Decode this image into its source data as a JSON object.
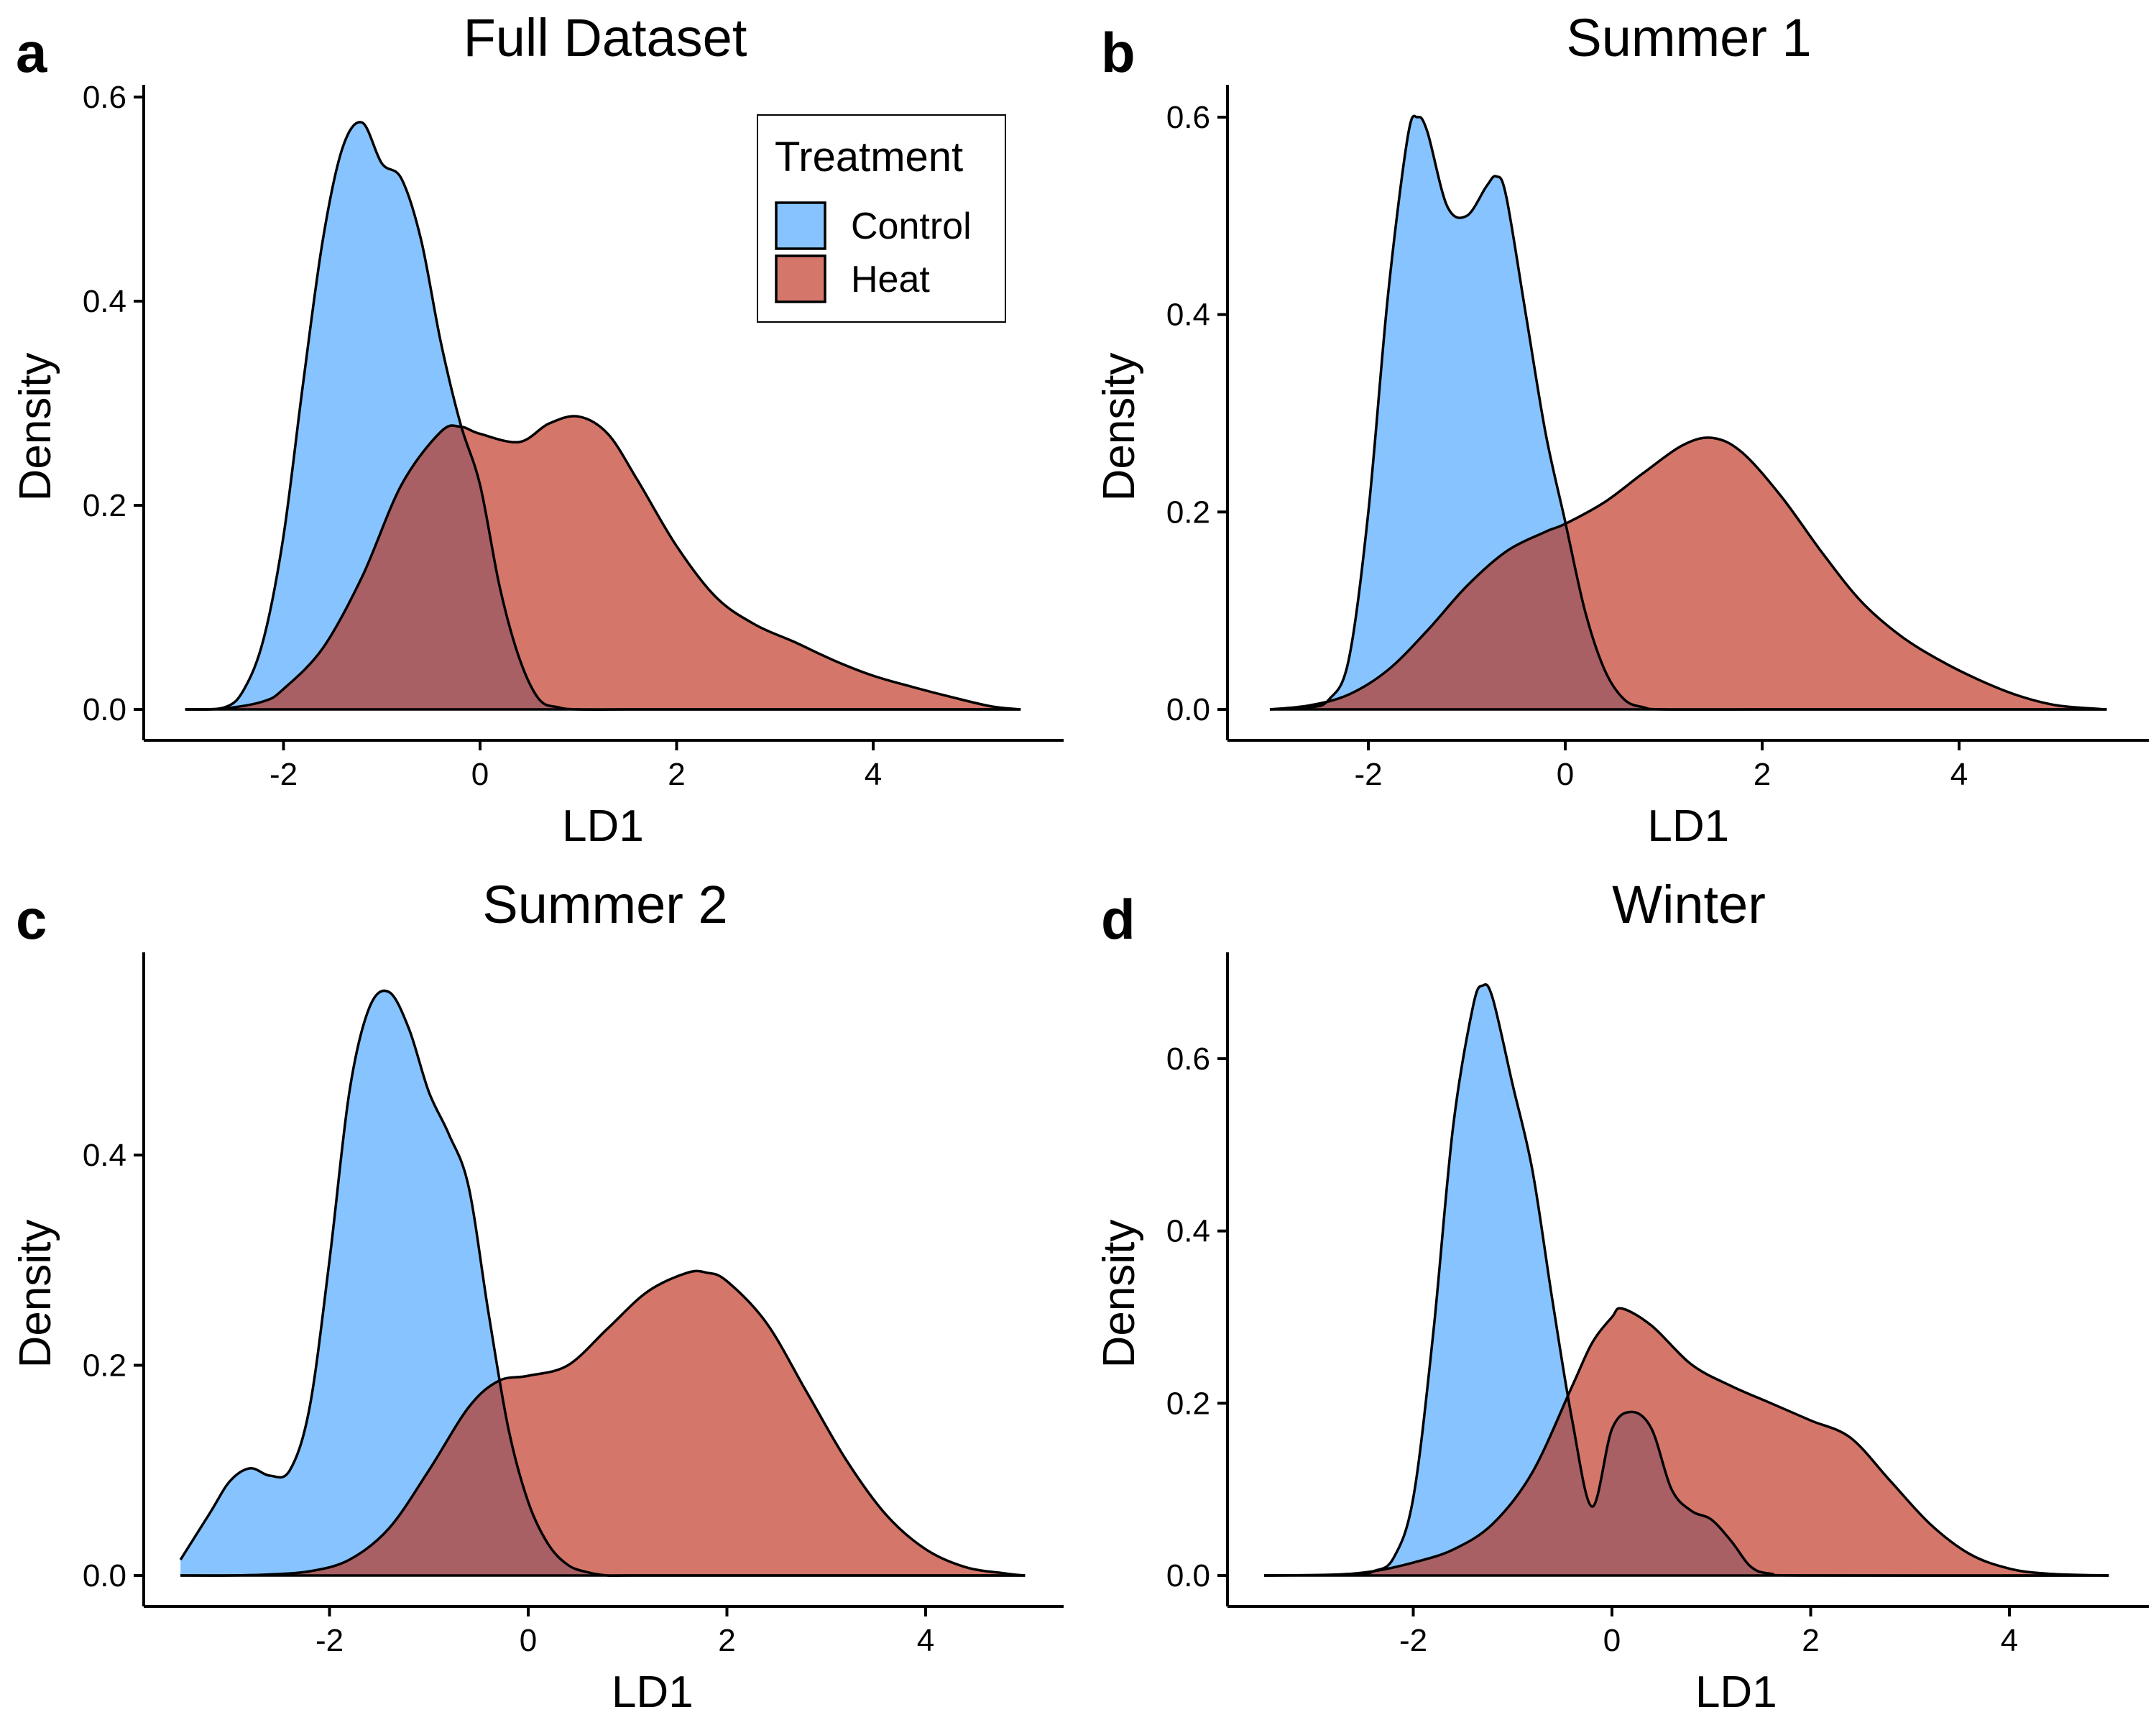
{
  "colors": {
    "control": "#87C4FF",
    "heat": "#D4776A",
    "overlap": "#A86064",
    "axis": "#000000"
  },
  "legend": {
    "title": "Treatment",
    "items": [
      {
        "label": "Control",
        "color": "#87C4FF"
      },
      {
        "label": "Heat",
        "color": "#D4776A"
      }
    ]
  },
  "chart_data": [
    {
      "type": "area",
      "panel": "a",
      "title": "Full Dataset",
      "xlabel": "LD1",
      "ylabel": "Density",
      "xlim": [
        -3.0,
        5.5
      ],
      "ylim": [
        0,
        0.6
      ],
      "xticks": [
        -2,
        0,
        2,
        4
      ],
      "yticks": [
        0.0,
        0.2,
        0.4,
        0.6
      ],
      "ytick_labels": [
        "0.0",
        "0.2",
        "0.4",
        "0.6"
      ],
      "legend": "top-right",
      "series": [
        {
          "name": "Control",
          "x": [
            -3.0,
            -2.6,
            -2.4,
            -2.2,
            -2.0,
            -1.8,
            -1.6,
            -1.4,
            -1.2,
            -1.0,
            -0.8,
            -0.6,
            -0.4,
            -0.2,
            0.0,
            0.2,
            0.4,
            0.6,
            0.8,
            1.0,
            1.5,
            2.0,
            3.0,
            4.0,
            5.0,
            5.5
          ],
          "y": [
            0.0,
            0.002,
            0.02,
            0.07,
            0.17,
            0.32,
            0.46,
            0.55,
            0.575,
            0.535,
            0.52,
            0.46,
            0.36,
            0.28,
            0.22,
            0.12,
            0.05,
            0.01,
            0.002,
            0.0,
            0.0,
            0.0,
            0.0,
            0.0,
            0.0,
            0.0
          ]
        },
        {
          "name": "Heat",
          "x": [
            -3.0,
            -2.6,
            -2.2,
            -2.0,
            -1.6,
            -1.2,
            -0.8,
            -0.4,
            -0.2,
            0.0,
            0.4,
            0.7,
            1.0,
            1.3,
            1.6,
            2.0,
            2.4,
            2.8,
            3.2,
            3.6,
            4.0,
            4.4,
            4.8,
            5.2,
            5.5
          ],
          "y": [
            0.0,
            0.001,
            0.008,
            0.02,
            0.06,
            0.13,
            0.22,
            0.272,
            0.277,
            0.27,
            0.262,
            0.28,
            0.287,
            0.27,
            0.225,
            0.16,
            0.11,
            0.083,
            0.066,
            0.048,
            0.033,
            0.022,
            0.012,
            0.003,
            0.0
          ]
        }
      ]
    },
    {
      "type": "area",
      "panel": "b",
      "title": "Summer 1",
      "xlabel": "LD1",
      "ylabel": "Density",
      "xlim": [
        -3.0,
        5.5
      ],
      "ylim": [
        0,
        0.6
      ],
      "xticks": [
        -2,
        0,
        2,
        4
      ],
      "yticks": [
        0.0,
        0.2,
        0.4,
        0.6
      ],
      "ytick_labels": [
        "0.0",
        "0.2",
        "0.4",
        "0.6"
      ],
      "series": [
        {
          "name": "Control",
          "x": [
            -3.0,
            -2.6,
            -2.4,
            -2.2,
            -2.0,
            -1.8,
            -1.6,
            -1.5,
            -1.4,
            -1.2,
            -1.0,
            -0.8,
            -0.7,
            -0.6,
            -0.4,
            -0.2,
            0.0,
            0.2,
            0.4,
            0.6,
            0.8,
            1.0,
            2.0,
            3.0,
            4.0,
            5.5
          ],
          "y": [
            0.0,
            0.002,
            0.01,
            0.05,
            0.2,
            0.42,
            0.58,
            0.6,
            0.585,
            0.51,
            0.5,
            0.53,
            0.54,
            0.52,
            0.4,
            0.28,
            0.19,
            0.1,
            0.04,
            0.01,
            0.002,
            0.0,
            0.0,
            0.0,
            0.0,
            0.0
          ]
        },
        {
          "name": "Heat",
          "x": [
            -3.0,
            -2.6,
            -2.2,
            -1.8,
            -1.4,
            -1.0,
            -0.6,
            -0.2,
            0.0,
            0.4,
            0.8,
            1.2,
            1.5,
            1.8,
            2.2,
            2.6,
            3.0,
            3.4,
            3.8,
            4.2,
            4.6,
            5.0,
            5.5
          ],
          "y": [
            0.0,
            0.004,
            0.015,
            0.04,
            0.08,
            0.125,
            0.16,
            0.18,
            0.188,
            0.21,
            0.24,
            0.268,
            0.275,
            0.26,
            0.215,
            0.16,
            0.11,
            0.075,
            0.05,
            0.03,
            0.014,
            0.004,
            0.0
          ]
        }
      ]
    },
    {
      "type": "area",
      "panel": "c",
      "title": "Summer 2",
      "xlabel": "LD1",
      "ylabel": "Density",
      "xlim": [
        -3.5,
        5.0
      ],
      "ylim": [
        0,
        0.56
      ],
      "xticks": [
        -2,
        0,
        2,
        4
      ],
      "yticks": [
        0.0,
        0.2,
        0.4
      ],
      "ytick_labels": [
        "0.0",
        "0.2",
        "0.4"
      ],
      "series": [
        {
          "name": "Control",
          "x": [
            -3.5,
            -3.2,
            -3.0,
            -2.8,
            -2.6,
            -2.4,
            -2.2,
            -2.0,
            -1.8,
            -1.6,
            -1.4,
            -1.2,
            -1.0,
            -0.8,
            -0.6,
            -0.4,
            -0.2,
            0.0,
            0.2,
            0.4,
            0.6,
            0.8,
            1.0,
            2.0,
            3.0,
            5.0
          ],
          "y": [
            0.015,
            0.06,
            0.09,
            0.102,
            0.095,
            0.1,
            0.16,
            0.3,
            0.46,
            0.54,
            0.555,
            0.52,
            0.46,
            0.42,
            0.37,
            0.25,
            0.14,
            0.07,
            0.03,
            0.01,
            0.003,
            0.0,
            0.0,
            0.0,
            0.0,
            0.0
          ]
        },
        {
          "name": "Heat",
          "x": [
            -3.5,
            -3.0,
            -2.6,
            -2.2,
            -1.8,
            -1.4,
            -1.0,
            -0.6,
            -0.3,
            0.0,
            0.4,
            0.8,
            1.2,
            1.6,
            1.8,
            2.0,
            2.4,
            2.8,
            3.2,
            3.6,
            4.0,
            4.4,
            4.8,
            5.0
          ],
          "y": [
            0.0,
            0.0,
            0.001,
            0.004,
            0.015,
            0.045,
            0.1,
            0.16,
            0.185,
            0.19,
            0.2,
            0.235,
            0.27,
            0.288,
            0.288,
            0.28,
            0.24,
            0.175,
            0.11,
            0.058,
            0.025,
            0.008,
            0.002,
            0.0
          ]
        }
      ]
    },
    {
      "type": "area",
      "panel": "d",
      "title": "Winter",
      "xlabel": "LD1",
      "ylabel": "Density",
      "xlim": [
        -3.5,
        5.0
      ],
      "ylim": [
        0,
        0.69
      ],
      "xticks": [
        -2,
        0,
        2,
        4
      ],
      "yticks": [
        0.0,
        0.2,
        0.4,
        0.6
      ],
      "ytick_labels": [
        "0.0",
        "0.2",
        "0.4",
        "0.6"
      ],
      "series": [
        {
          "name": "Control",
          "x": [
            -3.5,
            -2.6,
            -2.4,
            -2.2,
            -2.0,
            -1.8,
            -1.6,
            -1.4,
            -1.3,
            -1.2,
            -1.0,
            -0.8,
            -0.6,
            -0.4,
            -0.2,
            0.0,
            0.2,
            0.4,
            0.6,
            0.8,
            1.0,
            1.2,
            1.4,
            1.6,
            2.0,
            5.0
          ],
          "y": [
            0.0,
            0.001,
            0.005,
            0.02,
            0.09,
            0.28,
            0.52,
            0.66,
            0.685,
            0.67,
            0.57,
            0.47,
            0.32,
            0.18,
            0.08,
            0.17,
            0.19,
            0.17,
            0.1,
            0.075,
            0.065,
            0.04,
            0.01,
            0.002,
            0.0,
            0.0
          ]
        },
        {
          "name": "Heat",
          "x": [
            -3.5,
            -2.8,
            -2.4,
            -2.0,
            -1.6,
            -1.2,
            -0.8,
            -0.4,
            -0.2,
            0.0,
            0.1,
            0.4,
            0.8,
            1.2,
            1.6,
            2.0,
            2.4,
            2.8,
            3.2,
            3.6,
            4.0,
            4.4,
            5.0
          ],
          "y": [
            0.0,
            0.001,
            0.005,
            0.015,
            0.03,
            0.06,
            0.12,
            0.22,
            0.27,
            0.3,
            0.31,
            0.29,
            0.245,
            0.22,
            0.2,
            0.18,
            0.16,
            0.11,
            0.06,
            0.025,
            0.008,
            0.002,
            0.0
          ]
        }
      ]
    }
  ]
}
